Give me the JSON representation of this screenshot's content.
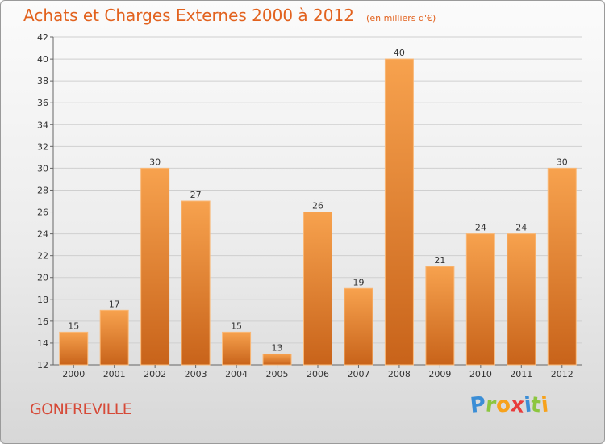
{
  "chart_title": "Achats et Charges Externes 2000 à 2012",
  "chart_subtitle": "(en milliers d'€)",
  "place_name": "GONFREVILLE",
  "brand": {
    "letters": [
      "P",
      "r",
      "o",
      "x",
      "i",
      "t",
      "i"
    ],
    "colors": [
      "#3b8ed6",
      "#8cc63f",
      "#f7a21b",
      "#e83c3c",
      "#3b8ed6",
      "#8cc63f",
      "#f7a21b"
    ]
  },
  "colors": {
    "bar_light": "#f7a24e",
    "bar_dark": "#c8631a",
    "title": "#e2621e",
    "place": "#d64a38"
  },
  "chart_data": {
    "type": "bar",
    "title": "Achats et Charges Externes 2000 à 2012",
    "subtitle": "(en milliers d'€)",
    "categories": [
      "2000",
      "2001",
      "2002",
      "2003",
      "2004",
      "2005",
      "2006",
      "2007",
      "2008",
      "2009",
      "2010",
      "2011",
      "2012"
    ],
    "values": [
      15,
      17,
      30,
      27,
      15,
      13,
      26,
      19,
      40,
      21,
      24,
      24,
      30
    ],
    "ylim": [
      12,
      42
    ],
    "yticks": [
      12,
      14,
      16,
      18,
      20,
      22,
      24,
      26,
      28,
      30,
      32,
      34,
      36,
      38,
      40,
      42
    ],
    "grid": true,
    "data_labels": true
  }
}
